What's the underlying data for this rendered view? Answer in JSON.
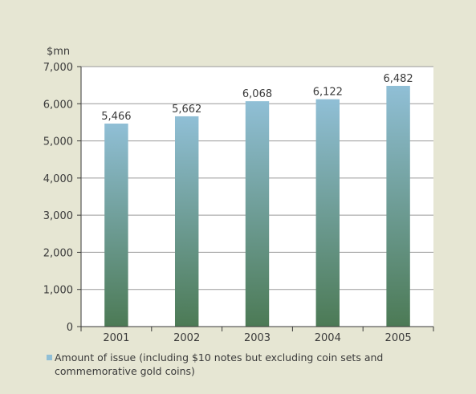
{
  "chart_data": {
    "type": "bar",
    "ylabel": "$mn",
    "categories": [
      "2001",
      "2002",
      "2003",
      "2004",
      "2005"
    ],
    "values": [
      5466,
      5662,
      6068,
      6122,
      6482
    ],
    "data_labels": [
      "5,466",
      "5,662",
      "6,068",
      "6,122",
      "6,482"
    ],
    "ylim": [
      0,
      7000
    ],
    "yticks": [
      0,
      1000,
      2000,
      3000,
      4000,
      5000,
      6000,
      7000
    ],
    "ytick_labels": [
      "0",
      "1,000",
      "2,000",
      "3,000",
      "4,000",
      "5,000",
      "6,000",
      "7,000"
    ],
    "grid": true,
    "legend_position": "bottom",
    "series": [
      {
        "name": "Amount of issue (including $10 notes but excluding coin sets and commemorative gold coins)",
        "legend_lines": [
          "Amount of issue (including $10 notes but excluding coin sets and",
          "commemorative gold coins)"
        ],
        "color_top": "#90bfd6",
        "color_bottom": "#4c7a55"
      }
    ]
  }
}
